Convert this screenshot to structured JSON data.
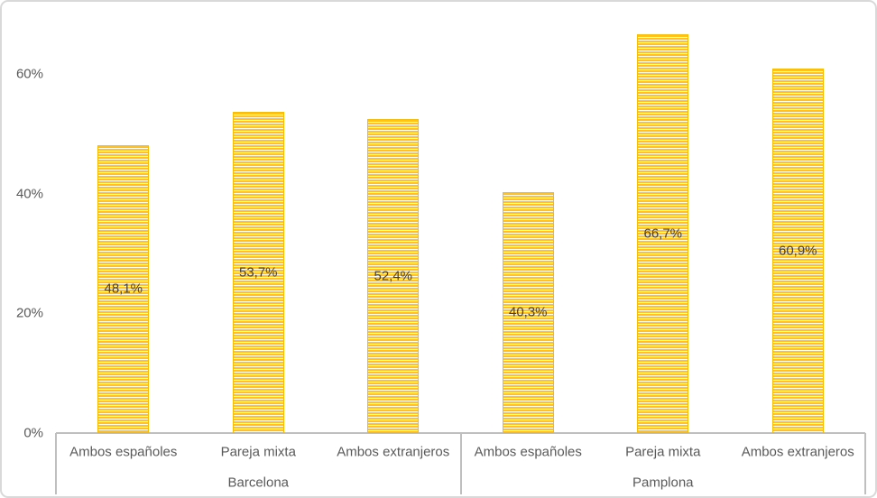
{
  "chart_data": {
    "type": "bar",
    "title": "",
    "xlabel": "",
    "ylabel": "",
    "groups": [
      {
        "label": "Barcelona",
        "categories": [
          "Ambos españoles",
          "Pareja mixta",
          "Ambos extranjeros"
        ],
        "values": [
          48.1,
          53.7,
          52.4
        ],
        "value_labels": [
          "48,1%",
          "53,7%",
          "52,4%"
        ]
      },
      {
        "label": "Pamplona",
        "categories": [
          "Ambos españoles",
          "Pareja mixta",
          "Ambos extranjeros"
        ],
        "values": [
          40.3,
          66.7,
          60.9
        ],
        "value_labels": [
          "40,3%",
          "66,7%",
          "60,9%"
        ]
      }
    ],
    "yticks": [
      {
        "value": 0,
        "label": "0%"
      },
      {
        "value": 20,
        "label": "20%"
      },
      {
        "value": 40,
        "label": "40%"
      },
      {
        "value": 60,
        "label": "60%"
      }
    ],
    "ylim": [
      0,
      70
    ],
    "grid": false,
    "legend": "none",
    "bar_fill_pattern": "horizontal-stripes",
    "colors": {
      "bar": "#FFC000",
      "bar_stripe_bg": "#FFFDF4",
      "bar_border": "#F7BC00",
      "data_label_text": "#404040",
      "axis_text": "#595959",
      "axis_line": "#BFBFBF",
      "frame_border": "#D9D9D9"
    }
  }
}
